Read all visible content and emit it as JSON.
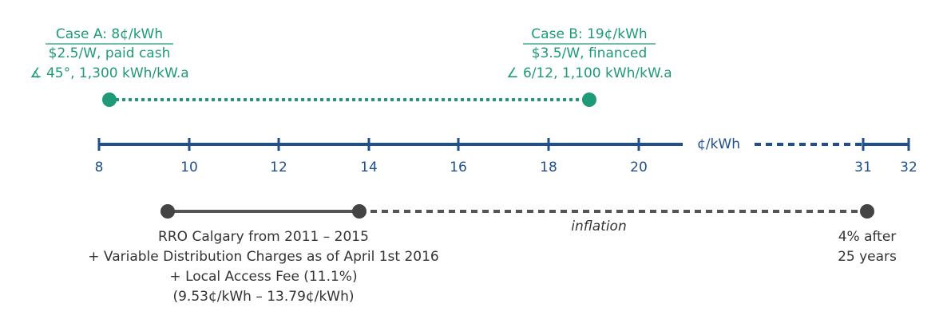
{
  "case_a": {
    "title": "Case A: 8¢/kWh",
    "lines": [
      "$2.5/W, paid cash",
      "∡ 45°, 1,300 kWh/kW.a"
    ]
  },
  "case_b": {
    "title": "Case B: 19¢/kWh",
    "lines": [
      "$3.5/W, financed",
      "∠ 6/12, 1,100 kWh/kW.a"
    ]
  },
  "axis": {
    "unit": "¢/kWh",
    "ticks": [
      "8",
      "10",
      "12",
      "14",
      "16",
      "18",
      "20",
      "31",
      "32"
    ]
  },
  "inflation": "inflation",
  "rro": {
    "lines": [
      "RRO Calgary from 2011 – 2015",
      "+ Variable Distribution Charges as of April 1st 2016",
      "+ Local Access Fee (11.1%)",
      "(9.53¢/kWh – 13.79¢/kWh)"
    ]
  },
  "end_note": {
    "lines": [
      "4% after",
      "25 years"
    ]
  }
}
